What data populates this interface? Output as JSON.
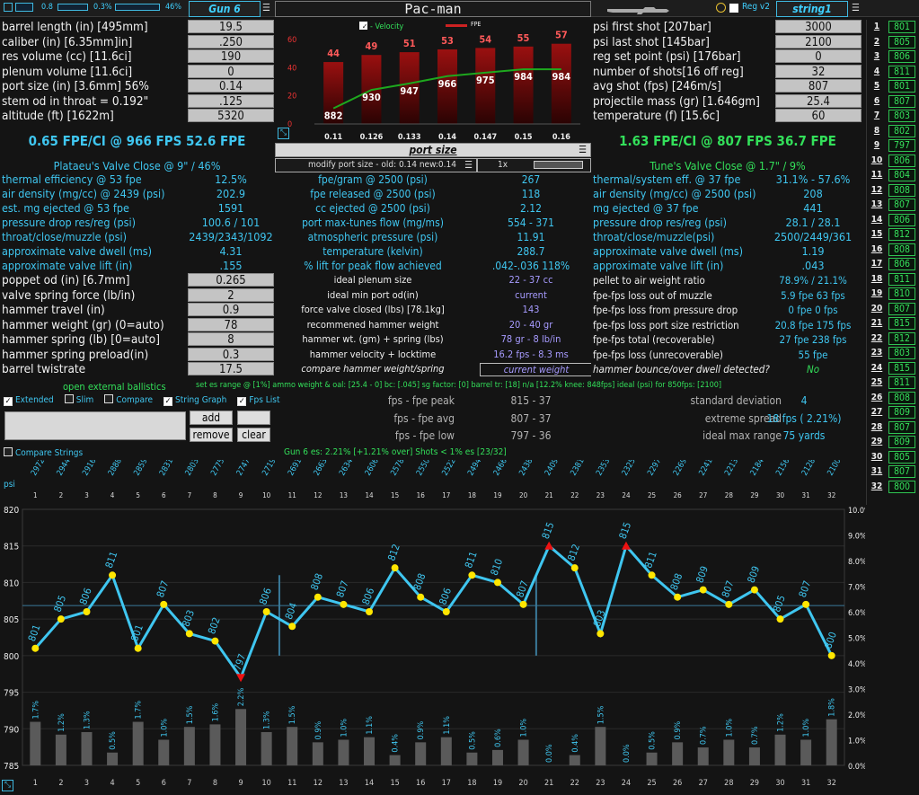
{
  "topbar": {
    "slider1": "0.8",
    "slider2": "0.3%",
    "slider2_end": "46%",
    "gun_tab": "Gun 6",
    "title": "Pac-man",
    "reg_label": "Reg v2",
    "string_tab": "string1"
  },
  "left_inputs": [
    {
      "label": "barrel length (in) [495mm]",
      "value": "19.5"
    },
    {
      "label": "caliber (in) [6.35mm]in]",
      "value": ".250"
    },
    {
      "label": "res volume (cc) [11.6ci]",
      "value": "190"
    },
    {
      "label": "plenum volume [11.6ci]",
      "value": "0"
    },
    {
      "label": "port size (in) [3.6mm] 56%",
      "value": "0.14"
    },
    {
      "label": "stem od in throat = 0.192\"",
      "value": ".125"
    },
    {
      "label": "altitude (ft) [1622m]",
      "value": "5320"
    }
  ],
  "left_summary": "0.65 FPE/CI @ 966 FPS 52.6 FPE",
  "left_plateau": "Plataeu's  Valve Close @ 9\" / 46%",
  "left_stats": [
    {
      "label": "thermal efficiency @ 53 fpe",
      "value": "12.5%"
    },
    {
      "label": "air density (mg/cc) @ 2439 (psi)",
      "value": "202.9"
    },
    {
      "label": "est. mg ejected @ 53 fpe",
      "value": "1591"
    },
    {
      "label": "pressure drop res/reg (psi)",
      "value": "100.6 / 101"
    },
    {
      "label": "throat/close/muzzle (psi)",
      "value": "2439/2343/1092"
    },
    {
      "label": "approximate valve dwell (ms)",
      "value": "4.31"
    },
    {
      "label": "approximate valve lift (in)",
      "value": ".155"
    }
  ],
  "left_inputs2": [
    {
      "label": "poppet od (in) [6.7mm]",
      "value": "0.265"
    },
    {
      "label": "valve spring force (lb/in)",
      "value": "2"
    },
    {
      "label": "hammer travel (in)",
      "value": "0.9"
    },
    {
      "label": "hammer weight (gr) (0=auto)",
      "value": "78"
    },
    {
      "label": "hammer spring (lb) [0=auto]",
      "value": "8"
    },
    {
      "label": "hammer spring preload(in)",
      "value": "0.3"
    },
    {
      "label": "barrel twistrate",
      "value": "17.5"
    }
  ],
  "open_ballistics": "open external ballistics",
  "ballistics_line": "set es range @ [1%]   ammo weight & oal: [25.4 - 0]   bc: [.045]   sg factor: [0]   barrel tr: [18]   n/a  [12.2% knee: 848fps]   ideal (psi) for 850fps: [2100]",
  "checks": [
    {
      "label": "Extended",
      "on": true
    },
    {
      "label": "Slim",
      "on": false
    },
    {
      "label": "Compare",
      "on": false
    },
    {
      "label": "String Graph",
      "on": true
    },
    {
      "label": "Fps List",
      "on": true
    }
  ],
  "buttons": {
    "add": "add",
    "remove": "remove",
    "clear": "clear"
  },
  "compare_strings": "Compare Strings",
  "gun_es_line": "Gun 6 es: 2.21% [+1.21% over] Shots < 1% es [23/32]",
  "port_chart": {
    "legend_velocity": "- Velocity",
    "legend_fpe": "FPE",
    "ymax_labels": [
      "60",
      "40",
      "20",
      "0"
    ],
    "x": [
      "0.11",
      "0.126",
      "0.133",
      "0.14",
      "0.147",
      "0.15",
      "0.16"
    ],
    "fpe": [
      44,
      49,
      51,
      53,
      54,
      55,
      57
    ],
    "velocity": [
      882,
      930,
      947,
      966,
      975,
      984,
      984
    ]
  },
  "port_size_title": "port size",
  "modify_port": "modify port size - old: 0.14 new:0.14",
  "zoom_label": "1x",
  "mid_stats": [
    {
      "label": "fpe/gram @ 2500 (psi)",
      "value": "267"
    },
    {
      "label": "fpe released @ 2500 (psi)",
      "value": "118"
    },
    {
      "label": "cc ejected @ 2500 (psi)",
      "value": "2.12"
    },
    {
      "label": "port max-tunes flow (mg/ms)",
      "value": "554 - 371"
    },
    {
      "label": "atmospheric pressure (psi)",
      "value": "11.91"
    },
    {
      "label": "temperature (kelvin)",
      "value": "288.7"
    },
    {
      "label": "% lift for peak flow achieved",
      "value": ".042-.036 118%"
    }
  ],
  "mid_stats2": [
    {
      "label": "ideal plenum size",
      "value": "22 - 37 cc"
    },
    {
      "label": "ideal min port od(in)",
      "value": "current"
    },
    {
      "label": "force valve closed (lbs) [78.1kg]",
      "value": "143"
    },
    {
      "label": "recommened hammer weight",
      "value": "20 - 40 gr"
    },
    {
      "label": "hammer wt. (gm) +  spring (lbs)",
      "value": "78 gr - 8 lb/in"
    },
    {
      "label": "hammer velocity + locktime",
      "value": "16.2 fps - 8.3 ms"
    },
    {
      "label": "compare hammer weight/spring",
      "value": "current weight"
    }
  ],
  "fps_fpe": [
    {
      "label": "fps - fpe peak",
      "value": "815 - 37"
    },
    {
      "label": "fps - fpe avg",
      "value": "807 - 37"
    },
    {
      "label": "fps - fpe low",
      "value": "797 - 36"
    }
  ],
  "right_inputs": [
    {
      "label": "psi first shot [207bar]",
      "value": "3000"
    },
    {
      "label": "psi last shot  [145bar]",
      "value": "2100"
    },
    {
      "label": "reg set point (psi) [176bar]",
      "value": "0"
    },
    {
      "label": "number of shots[16 off reg]",
      "value": "32"
    },
    {
      "label": "avg shot (fps) [246m/s]",
      "value": "807"
    },
    {
      "label": "projectile mass (gr) [1.646gm]",
      "value": "25.4"
    },
    {
      "label": "temperature (f) [15.6c]",
      "value": "60"
    }
  ],
  "right_summary": "1.63 FPE/CI @ 807 FPS 36.7 FPE",
  "right_tune": "Tune's Valve Close @ 1.7\" / 9%",
  "right_stats": [
    {
      "label": "thermal/system eff. @ 37 fpe",
      "value": "31.1% - 57.6%"
    },
    {
      "label": "air density (mg/cc) @ 2500 (psi)",
      "value": "208"
    },
    {
      "label": "mg ejected @ 37 fpe",
      "value": "441"
    },
    {
      "label": "pressure drop res/reg (psi)",
      "value": "28.1 / 28.1"
    },
    {
      "label": "throat/close/muzzle(psi)",
      "value": "2500/2449/361"
    },
    {
      "label": "approximate valve dwell (ms)",
      "value": "1.19"
    },
    {
      "label": "approximate valve lift (in)",
      "value": ".043"
    }
  ],
  "right_stats2": [
    {
      "label": "pellet to air weight ratio",
      "value": "78.9% / 21.1%"
    },
    {
      "label": "fpe-fps loss out of muzzle",
      "value": "5.9 fpe  63 fps"
    },
    {
      "label": "fpe-fps loss from pressure drop",
      "value": "0 fpe  0 fps"
    },
    {
      "label": "fpe-fps loss port size restriction",
      "value": "20.8 fpe  175 fps"
    },
    {
      "label": "fpe-fps total (recoverable)",
      "value": "27 fpe  238 fps"
    },
    {
      "label": "fpe-fps loss (unrecoverable)",
      "value": "55 fpe"
    },
    {
      "label": "hammer bounce/over dwell detected?",
      "value": "No"
    }
  ],
  "right_stats3": [
    {
      "label": "standard deviation",
      "value": "4"
    },
    {
      "label": "extreme spread",
      "value": "18 fps ( 2.21%)"
    },
    {
      "label": "ideal max range",
      "value": "75 yards"
    }
  ],
  "shot_list": [
    "801",
    "805",
    "806",
    "811",
    "801",
    "807",
    "803",
    "802",
    "797",
    "806",
    "804",
    "808",
    "807",
    "806",
    "812",
    "808",
    "806",
    "811",
    "810",
    "807",
    "815",
    "812",
    "803",
    "815",
    "811",
    "808",
    "809",
    "807",
    "809",
    "805",
    "807",
    "800"
  ],
  "string_chart": {
    "psi_label": "psi",
    "psi": [
      2972,
      2944,
      2916,
      2888,
      2859,
      2831,
      2803,
      2775,
      2747,
      2719,
      2691,
      2663,
      2634,
      2606,
      2578,
      2550,
      2522,
      2494,
      2466,
      2438,
      2409,
      2381,
      2353,
      2325,
      2297,
      2269,
      2241,
      2213,
      2184,
      2156,
      2128,
      2100
    ],
    "yticks": [
      820,
      815,
      810,
      805,
      800,
      795,
      790,
      785
    ],
    "pct_ticks": [
      "10.0%",
      "9.0%",
      "8.0%",
      "7.0%",
      "6.0%",
      "5.0%",
      "4.0%",
      "3.0%",
      "2.0%",
      "1.0%",
      "0.0%"
    ],
    "pct": [
      "1.7%",
      "1.2%",
      "1.3%",
      "0.5%",
      "1.7%",
      "1.0%",
      "1.5%",
      "1.6%",
      "2.2%",
      "1.3%",
      "1.5%",
      "0.9%",
      "1.0%",
      "1.1%",
      "0.4%",
      "0.9%",
      "1.1%",
      "0.5%",
      "0.6%",
      "1.0%",
      "0.0%",
      "0.4%",
      "1.5%",
      "0.0%",
      "0.5%",
      "0.9%",
      "0.7%",
      "1.0%",
      "0.7%",
      "1.2%",
      "1.0%",
      "1.8%"
    ]
  }
}
